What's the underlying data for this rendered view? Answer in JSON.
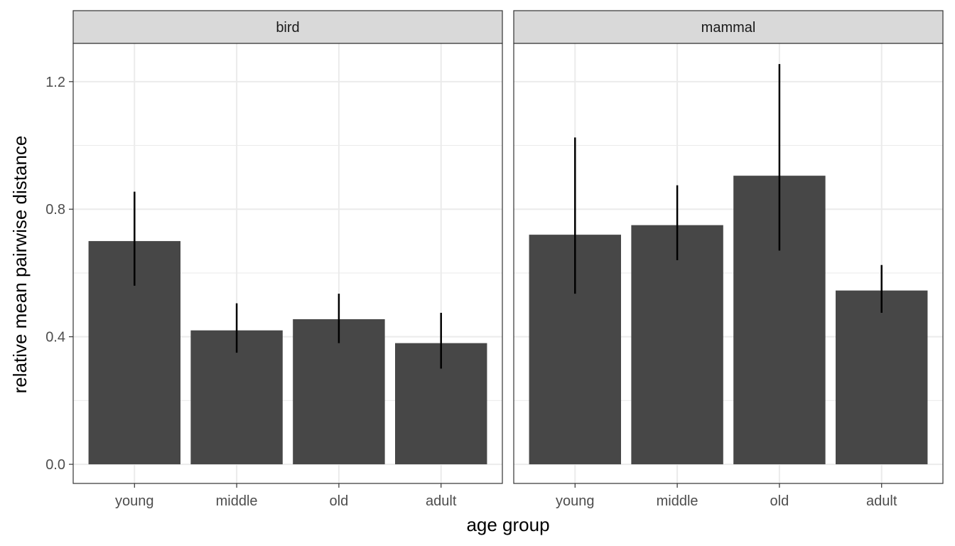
{
  "chart_data": {
    "type": "bar",
    "xlabel": "age group",
    "ylabel": "relative mean pairwise distance",
    "ylim": [
      -0.06,
      1.32
    ],
    "yticks": [
      0.0,
      0.4,
      0.8,
      1.2
    ],
    "ytick_labels": [
      "0.0",
      "0.4",
      "0.8",
      "1.2"
    ],
    "grid": true,
    "colors": {
      "bar": "#474747",
      "errorbar": "#000000",
      "strip_fill": "#d9d9d9",
      "panel_border": "#333333",
      "grid": "#ebebeb"
    },
    "categories": [
      "young",
      "middle",
      "old",
      "adult"
    ],
    "facets": [
      {
        "label": "bird",
        "values": [
          0.7,
          0.42,
          0.455,
          0.38
        ],
        "err_low": [
          0.56,
          0.35,
          0.38,
          0.3
        ],
        "err_high": [
          0.855,
          0.505,
          0.535,
          0.475
        ]
      },
      {
        "label": "mammal",
        "values": [
          0.72,
          0.75,
          0.905,
          0.545
        ],
        "err_low": [
          0.535,
          0.64,
          0.67,
          0.475
        ],
        "err_high": [
          1.025,
          0.875,
          1.255,
          0.625
        ]
      }
    ]
  }
}
